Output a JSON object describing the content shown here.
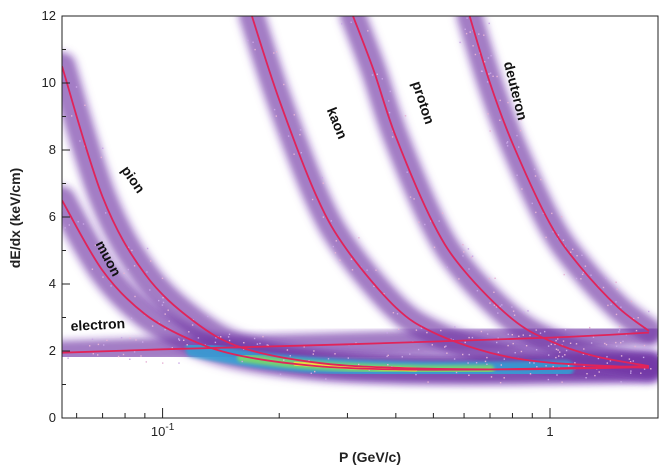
{
  "chart_data": {
    "type": "scatter",
    "title": "",
    "xlabel": "P (GeV/c)",
    "ylabel": "dE/dx (keV/cm)",
    "xscale": "log",
    "xlim": [
      0.055,
      1.9
    ],
    "ylim": [
      0,
      12
    ],
    "x_ticks": [
      {
        "value": 0.1,
        "label": "10",
        "sup": "-1"
      },
      {
        "value": 1,
        "label": "1",
        "sup": ""
      }
    ],
    "y_ticks": [
      0,
      2,
      4,
      6,
      8,
      10,
      12
    ],
    "y_tick_labels": [
      "0",
      "2",
      "4",
      "6",
      "8",
      "10",
      "12"
    ],
    "grid": false,
    "curve_color": "#e0245a",
    "band_colors": [
      "#6b2fa0",
      "#8f5bc4",
      "#2aa7d8",
      "#7bd96a",
      "#f0e23a"
    ],
    "series": [
      {
        "name": "electron",
        "x": [
          0.055,
          0.1,
          0.3,
          1.0,
          1.8
        ],
        "y": [
          1.95,
          2.05,
          2.2,
          2.4,
          2.55
        ]
      },
      {
        "name": "muon",
        "x": [
          0.055,
          0.07,
          0.09,
          0.12,
          0.16,
          0.25,
          0.4,
          0.7,
          1.2,
          1.8
        ],
        "y": [
          6.5,
          4.4,
          3.1,
          2.3,
          1.85,
          1.55,
          1.45,
          1.45,
          1.5,
          1.55
        ]
      },
      {
        "name": "pion",
        "x": [
          0.055,
          0.07,
          0.09,
          0.12,
          0.16,
          0.25,
          0.4,
          0.7,
          1.2,
          1.8
        ],
        "y": [
          10.5,
          6.6,
          4.3,
          2.9,
          2.1,
          1.65,
          1.5,
          1.45,
          1.48,
          1.52
        ]
      },
      {
        "name": "kaon",
        "x": [
          0.17,
          0.2,
          0.25,
          0.3,
          0.4,
          0.5,
          0.7,
          1.0,
          1.8
        ],
        "y": [
          12,
          9.5,
          6.6,
          5.0,
          3.3,
          2.55,
          1.95,
          1.65,
          1.5
        ]
      },
      {
        "name": "proton",
        "x": [
          0.31,
          0.35,
          0.4,
          0.5,
          0.6,
          0.8,
          1.0,
          1.3,
          1.8
        ],
        "y": [
          12,
          10.4,
          8.4,
          5.8,
          4.4,
          2.95,
          2.3,
          1.85,
          1.55
        ]
      },
      {
        "name": "deuteron",
        "x": [
          0.62,
          0.7,
          0.8,
          1.0,
          1.2,
          1.5,
          1.8
        ],
        "y": [
          12,
          10.0,
          8.2,
          5.8,
          4.5,
          3.3,
          2.6
        ]
      }
    ],
    "annotations": [
      {
        "text": "electron",
        "x": 0.058,
        "y": 2.6,
        "rotate": -3
      },
      {
        "text": "muon",
        "x": 0.067,
        "y": 5.2,
        "rotate": 62
      },
      {
        "text": "pion",
        "x": 0.078,
        "y": 7.4,
        "rotate": 55
      },
      {
        "text": "kaon",
        "x": 0.265,
        "y": 9.2,
        "rotate": 68
      },
      {
        "text": "proton",
        "x": 0.44,
        "y": 10.0,
        "rotate": 72
      },
      {
        "text": "deuteron",
        "x": 0.76,
        "y": 10.6,
        "rotate": 76
      }
    ]
  }
}
